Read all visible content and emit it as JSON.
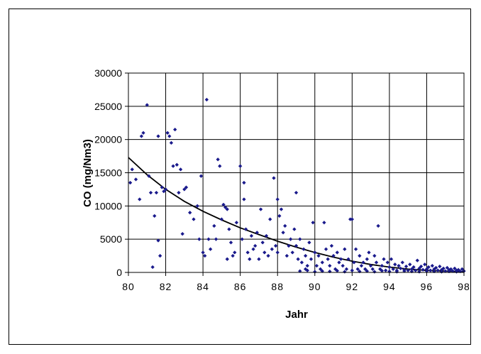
{
  "chart_data": {
    "type": "scatter",
    "title": "",
    "xlabel": "Jahr",
    "ylabel": "CO (mg/Nm3)",
    "xlim": [
      80,
      98
    ],
    "ylim": [
      0,
      30000
    ],
    "x_ticks": [
      "80",
      "82",
      "84",
      "86",
      "88",
      "90",
      "92",
      "94",
      "96",
      "98"
    ],
    "y_ticks": [
      "0",
      "5000",
      "10000",
      "15000",
      "20000",
      "25000",
      "30000"
    ],
    "grid": true,
    "legend": "none",
    "colors": {
      "points": "#1a1a8c",
      "trend": "#000000",
      "grid": "#000000"
    },
    "series": [
      {
        "points": [
          [
            80.1,
            13500
          ],
          [
            80.2,
            15500
          ],
          [
            80.4,
            14000
          ],
          [
            80.6,
            11000
          ],
          [
            80.7,
            20500
          ],
          [
            80.8,
            21000
          ],
          [
            81.0,
            25200
          ],
          [
            81.1,
            14500
          ],
          [
            81.2,
            12000
          ],
          [
            81.3,
            800
          ],
          [
            81.4,
            8500
          ],
          [
            81.5,
            12000
          ],
          [
            81.6,
            20500
          ],
          [
            81.6,
            4800
          ],
          [
            81.7,
            2500
          ],
          [
            81.8,
            12800
          ],
          [
            81.9,
            12200
          ],
          [
            82.0,
            12500
          ],
          [
            82.1,
            21000
          ],
          [
            82.2,
            20500
          ],
          [
            82.3,
            19500
          ],
          [
            82.4,
            16000
          ],
          [
            82.5,
            21500
          ],
          [
            82.6,
            16200
          ],
          [
            82.7,
            12000
          ],
          [
            82.8,
            15500
          ],
          [
            82.9,
            5800
          ],
          [
            83.0,
            12500
          ],
          [
            83.1,
            12800
          ],
          [
            83.3,
            9000
          ],
          [
            83.5,
            8000
          ],
          [
            83.7,
            10000
          ],
          [
            83.8,
            5000
          ],
          [
            83.9,
            14500
          ],
          [
            84.0,
            3000
          ],
          [
            84.1,
            2500
          ],
          [
            84.2,
            26000
          ],
          [
            84.3,
            5000
          ],
          [
            84.4,
            3500
          ],
          [
            84.6,
            7000
          ],
          [
            84.7,
            5000
          ],
          [
            84.8,
            17000
          ],
          [
            84.9,
            16000
          ],
          [
            85.0,
            8000
          ],
          [
            85.1,
            10200
          ],
          [
            85.2,
            9800
          ],
          [
            85.3,
            9500
          ],
          [
            85.3,
            2000
          ],
          [
            85.4,
            6500
          ],
          [
            85.5,
            4500
          ],
          [
            85.6,
            2500
          ],
          [
            85.7,
            3000
          ],
          [
            85.8,
            7500
          ],
          [
            86.0,
            16000
          ],
          [
            86.1,
            5000
          ],
          [
            86.2,
            13500
          ],
          [
            86.2,
            11000
          ],
          [
            86.3,
            6500
          ],
          [
            86.4,
            3000
          ],
          [
            86.5,
            2000
          ],
          [
            86.6,
            5500
          ],
          [
            86.7,
            3500
          ],
          [
            86.8,
            4000
          ],
          [
            86.9,
            6000
          ],
          [
            87.0,
            2000
          ],
          [
            87.1,
            9500
          ],
          [
            87.2,
            4500
          ],
          [
            87.3,
            3000
          ],
          [
            87.4,
            5500
          ],
          [
            87.5,
            2500
          ],
          [
            87.6,
            8000
          ],
          [
            87.7,
            3500
          ],
          [
            87.8,
            14200
          ],
          [
            87.9,
            4000
          ],
          [
            88.0,
            11000
          ],
          [
            88.0,
            3000
          ],
          [
            88.1,
            8500
          ],
          [
            88.2,
            9500
          ],
          [
            88.3,
            6000
          ],
          [
            88.4,
            7000
          ],
          [
            88.5,
            2500
          ],
          [
            88.6,
            4000
          ],
          [
            88.7,
            5000
          ],
          [
            88.8,
            3000
          ],
          [
            88.9,
            6500
          ],
          [
            89.0,
            12000
          ],
          [
            89.0,
            4000
          ],
          [
            89.1,
            2000
          ],
          [
            89.2,
            5000
          ],
          [
            89.3,
            1500
          ],
          [
            89.4,
            3500
          ],
          [
            89.5,
            500
          ],
          [
            89.5,
            2500
          ],
          [
            89.6,
            1000
          ],
          [
            89.7,
            4500
          ],
          [
            89.8,
            2000
          ],
          [
            89.9,
            7500
          ],
          [
            90.0,
            3000
          ],
          [
            90.1,
            1000
          ],
          [
            90.2,
            2500
          ],
          [
            90.3,
            500
          ],
          [
            90.4,
            1500
          ],
          [
            90.5,
            7500
          ],
          [
            90.6,
            3500
          ],
          [
            90.7,
            2000
          ],
          [
            90.8,
            1000
          ],
          [
            90.9,
            4000
          ],
          [
            91.0,
            2500
          ],
          [
            91.1,
            500
          ],
          [
            91.2,
            3000
          ],
          [
            91.3,
            1500
          ],
          [
            91.4,
            2000
          ],
          [
            91.5,
            1000
          ],
          [
            91.6,
            3500
          ],
          [
            91.7,
            500
          ],
          [
            91.8,
            2000
          ],
          [
            91.9,
            8000
          ],
          [
            92.0,
            8000
          ],
          [
            92.1,
            1500
          ],
          [
            92.2,
            3500
          ],
          [
            92.3,
            500
          ],
          [
            92.4,
            2500
          ],
          [
            92.5,
            1000
          ],
          [
            92.6,
            1500
          ],
          [
            92.7,
            500
          ],
          [
            92.8,
            2000
          ],
          [
            92.9,
            3000
          ],
          [
            93.0,
            1000
          ],
          [
            93.1,
            500
          ],
          [
            93.2,
            2500
          ],
          [
            93.3,
            1500
          ],
          [
            93.4,
            7000
          ],
          [
            93.5,
            500
          ],
          [
            93.6,
            1000
          ],
          [
            93.7,
            2000
          ],
          [
            93.8,
            300
          ],
          [
            93.9,
            1500
          ],
          [
            94.0,
            800
          ],
          [
            94.1,
            2000
          ],
          [
            94.2,
            500
          ],
          [
            94.3,
            1200
          ],
          [
            94.4,
            300
          ],
          [
            94.5,
            1000
          ],
          [
            94.6,
            600
          ],
          [
            94.7,
            1500
          ],
          [
            94.8,
            400
          ],
          [
            94.9,
            900
          ],
          [
            95.0,
            300
          ],
          [
            95.1,
            1200
          ],
          [
            95.2,
            500
          ],
          [
            95.3,
            800
          ],
          [
            95.4,
            300
          ],
          [
            95.5,
            1800
          ],
          [
            95.6,
            600
          ],
          [
            95.7,
            900
          ],
          [
            95.8,
            400
          ],
          [
            95.9,
            1200
          ],
          [
            96.0,
            500
          ],
          [
            96.1,
            800
          ],
          [
            96.2,
            300
          ],
          [
            96.3,
            1000
          ],
          [
            96.4,
            500
          ],
          [
            96.5,
            700
          ],
          [
            96.6,
            300
          ],
          [
            96.7,
            900
          ],
          [
            96.8,
            400
          ],
          [
            96.9,
            600
          ],
          [
            97.0,
            200
          ],
          [
            97.1,
            700
          ],
          [
            97.2,
            400
          ],
          [
            97.3,
            500
          ],
          [
            97.4,
            200
          ],
          [
            97.5,
            600
          ],
          [
            97.6,
            300
          ],
          [
            97.7,
            400
          ],
          [
            97.8,
            150
          ],
          [
            97.9,
            500
          ],
          [
            98.0,
            200
          ],
          [
            89.2,
            200
          ],
          [
            89.6,
            300
          ],
          [
            90.0,
            100
          ],
          [
            90.4,
            200
          ],
          [
            90.8,
            150
          ],
          [
            91.2,
            250
          ],
          [
            91.6,
            100
          ],
          [
            92.0,
            300
          ],
          [
            92.4,
            150
          ],
          [
            92.8,
            200
          ],
          [
            93.2,
            100
          ],
          [
            93.6,
            250
          ],
          [
            94.0,
            150
          ],
          [
            94.4,
            100
          ],
          [
            94.8,
            200
          ],
          [
            95.2,
            150
          ],
          [
            95.6,
            100
          ],
          [
            96.0,
            200
          ],
          [
            96.4,
            150
          ],
          [
            96.8,
            100
          ],
          [
            97.2,
            150
          ],
          [
            97.6,
            100
          ]
        ]
      }
    ],
    "trendline": [
      [
        80,
        17300
      ],
      [
        81,
        14700
      ],
      [
        82,
        12500
      ],
      [
        83,
        10700
      ],
      [
        84,
        9200
      ],
      [
        85,
        7900
      ],
      [
        86,
        6700
      ],
      [
        87,
        5700
      ],
      [
        88,
        4700
      ],
      [
        89,
        3800
      ],
      [
        90,
        3000
      ],
      [
        91,
        2300
      ],
      [
        92,
        1700
      ],
      [
        93,
        1200
      ],
      [
        94,
        800
      ],
      [
        95,
        500
      ],
      [
        96,
        300
      ],
      [
        97,
        200
      ],
      [
        98,
        100
      ]
    ]
  }
}
